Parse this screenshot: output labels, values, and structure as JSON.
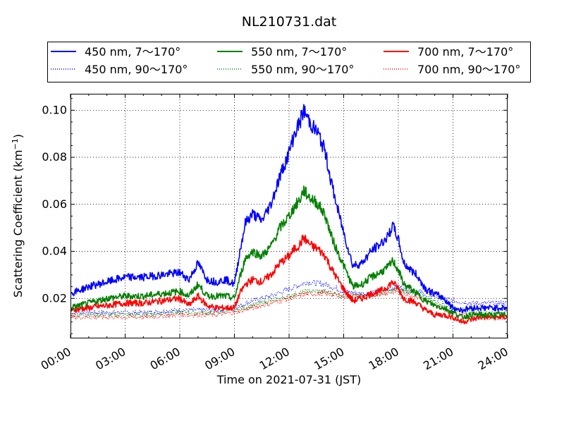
{
  "chart_data": {
    "type": "line",
    "title": "NL210731.dat",
    "xlabel": "Time on 2021-07-31 (JST)",
    "ylabel": "Scattering Coefficient (km",
    "ylabel_sup": "−1",
    "ylabel_close": ")",
    "xlim": [
      0,
      24
    ],
    "ylim": [
      0.003,
      0.107
    ],
    "x_ticks": [
      0,
      3,
      6,
      9,
      12,
      15,
      18,
      21,
      24
    ],
    "x_tick_labels": [
      "00:00",
      "03:00",
      "06:00",
      "09:00",
      "12:00",
      "15:00",
      "18:00",
      "21:00",
      "24:00"
    ],
    "y_ticks": [
      0.02,
      0.04,
      0.06,
      0.08,
      0.1
    ],
    "y_tick_labels": [
      "0.02",
      "0.04",
      "0.06",
      "0.08",
      "0.10"
    ],
    "grid": true,
    "legend_position": "top",
    "x_units": "hours",
    "series": [
      {
        "name": "450 nm, 7～170°",
        "color": "#0000ff",
        "style": "solid",
        "x": [
          0,
          1,
          2,
          3,
          4,
          5,
          6,
          6.5,
          7,
          7.5,
          8,
          8.5,
          9,
          9.3,
          9.6,
          10,
          10.5,
          11,
          11.5,
          12,
          12.3,
          12.6,
          12.8,
          13,
          13.3,
          13.6,
          14,
          14.3,
          14.6,
          15,
          15.5,
          16,
          16.5,
          17,
          17.4,
          17.7,
          18,
          18.3,
          18.7,
          19,
          19.5,
          20,
          20.5,
          21,
          21.5,
          22,
          22.5,
          23,
          24
        ],
        "values": [
          0.022,
          0.025,
          0.027,
          0.029,
          0.029,
          0.03,
          0.031,
          0.028,
          0.035,
          0.028,
          0.027,
          0.028,
          0.026,
          0.04,
          0.052,
          0.056,
          0.053,
          0.06,
          0.072,
          0.082,
          0.09,
          0.095,
          0.1,
          0.097,
          0.093,
          0.09,
          0.082,
          0.07,
          0.06,
          0.048,
          0.034,
          0.035,
          0.04,
          0.043,
          0.046,
          0.051,
          0.045,
          0.035,
          0.032,
          0.03,
          0.024,
          0.022,
          0.02,
          0.016,
          0.015,
          0.016,
          0.016,
          0.016,
          0.016
        ]
      },
      {
        "name": "450 nm, 90～170°",
        "color": "#0000ff",
        "style": "dotted",
        "x": [
          0,
          2,
          4,
          6,
          8,
          9,
          10,
          11,
          12,
          13,
          14,
          15,
          16,
          17,
          18,
          19,
          20,
          21,
          22,
          23,
          24
        ],
        "values": [
          0.014,
          0.014,
          0.014,
          0.015,
          0.015,
          0.016,
          0.019,
          0.021,
          0.024,
          0.027,
          0.026,
          0.023,
          0.022,
          0.023,
          0.025,
          0.023,
          0.021,
          0.019,
          0.018,
          0.018,
          0.018
        ]
      },
      {
        "name": "550 nm, 7～170°",
        "color": "#008000",
        "style": "solid",
        "x": [
          0,
          1,
          2,
          3,
          4,
          5,
          6,
          6.5,
          7,
          7.5,
          8,
          8.5,
          9,
          9.3,
          9.6,
          10,
          10.5,
          11,
          11.5,
          12,
          12.3,
          12.6,
          12.8,
          13,
          13.3,
          13.6,
          14,
          14.3,
          14.6,
          15,
          15.5,
          16,
          16.5,
          17,
          17.4,
          17.7,
          18,
          18.3,
          18.7,
          19,
          19.5,
          20,
          20.5,
          21,
          21.5,
          22,
          22.5,
          23,
          24
        ],
        "values": [
          0.016,
          0.018,
          0.02,
          0.021,
          0.021,
          0.022,
          0.023,
          0.021,
          0.026,
          0.021,
          0.021,
          0.021,
          0.02,
          0.029,
          0.037,
          0.04,
          0.038,
          0.042,
          0.05,
          0.055,
          0.059,
          0.062,
          0.066,
          0.064,
          0.062,
          0.06,
          0.055,
          0.047,
          0.041,
          0.034,
          0.025,
          0.026,
          0.029,
          0.031,
          0.033,
          0.036,
          0.032,
          0.026,
          0.024,
          0.022,
          0.019,
          0.017,
          0.016,
          0.014,
          0.012,
          0.013,
          0.013,
          0.013,
          0.013
        ]
      },
      {
        "name": "550 nm, 90～170°",
        "color": "#008000",
        "style": "dotted",
        "x": [
          0,
          2,
          4,
          6,
          8,
          9,
          10,
          11,
          12,
          13,
          14,
          15,
          16,
          17,
          18,
          19,
          20,
          21,
          22,
          23,
          24
        ],
        "values": [
          0.013,
          0.013,
          0.013,
          0.014,
          0.014,
          0.015,
          0.017,
          0.019,
          0.021,
          0.023,
          0.023,
          0.021,
          0.021,
          0.022,
          0.024,
          0.022,
          0.019,
          0.016,
          0.014,
          0.014,
          0.014
        ]
      },
      {
        "name": "700 nm, 7～170°",
        "color": "#ff0000",
        "style": "solid",
        "x": [
          0,
          1,
          2,
          3,
          4,
          5,
          6,
          6.5,
          7,
          7.5,
          8,
          8.5,
          9,
          9.3,
          9.6,
          10,
          10.5,
          11,
          11.5,
          12,
          12.3,
          12.6,
          12.8,
          13,
          13.3,
          13.6,
          14,
          14.3,
          14.6,
          15,
          15.5,
          16,
          16.5,
          17,
          17.4,
          17.7,
          18,
          18.3,
          18.7,
          19,
          19.5,
          20,
          20.5,
          21,
          21.5,
          22,
          22.5,
          23,
          24
        ],
        "values": [
          0.015,
          0.016,
          0.017,
          0.018,
          0.018,
          0.019,
          0.02,
          0.017,
          0.021,
          0.017,
          0.016,
          0.016,
          0.016,
          0.022,
          0.026,
          0.028,
          0.027,
          0.03,
          0.035,
          0.038,
          0.041,
          0.043,
          0.046,
          0.044,
          0.042,
          0.041,
          0.038,
          0.033,
          0.029,
          0.024,
          0.019,
          0.02,
          0.022,
          0.023,
          0.025,
          0.027,
          0.024,
          0.02,
          0.019,
          0.018,
          0.015,
          0.013,
          0.013,
          0.012,
          0.01,
          0.011,
          0.012,
          0.012,
          0.012
        ]
      },
      {
        "name": "700 nm, 90～170°",
        "color": "#ff0000",
        "style": "dotted",
        "x": [
          0,
          2,
          4,
          6,
          8,
          9,
          10,
          11,
          12,
          13,
          14,
          15,
          16,
          17,
          18,
          19,
          20,
          21,
          22,
          23,
          24
        ],
        "values": [
          0.012,
          0.012,
          0.012,
          0.013,
          0.013,
          0.014,
          0.016,
          0.018,
          0.02,
          0.022,
          0.022,
          0.021,
          0.021,
          0.022,
          0.023,
          0.021,
          0.017,
          0.014,
          0.012,
          0.012,
          0.012
        ]
      }
    ]
  }
}
